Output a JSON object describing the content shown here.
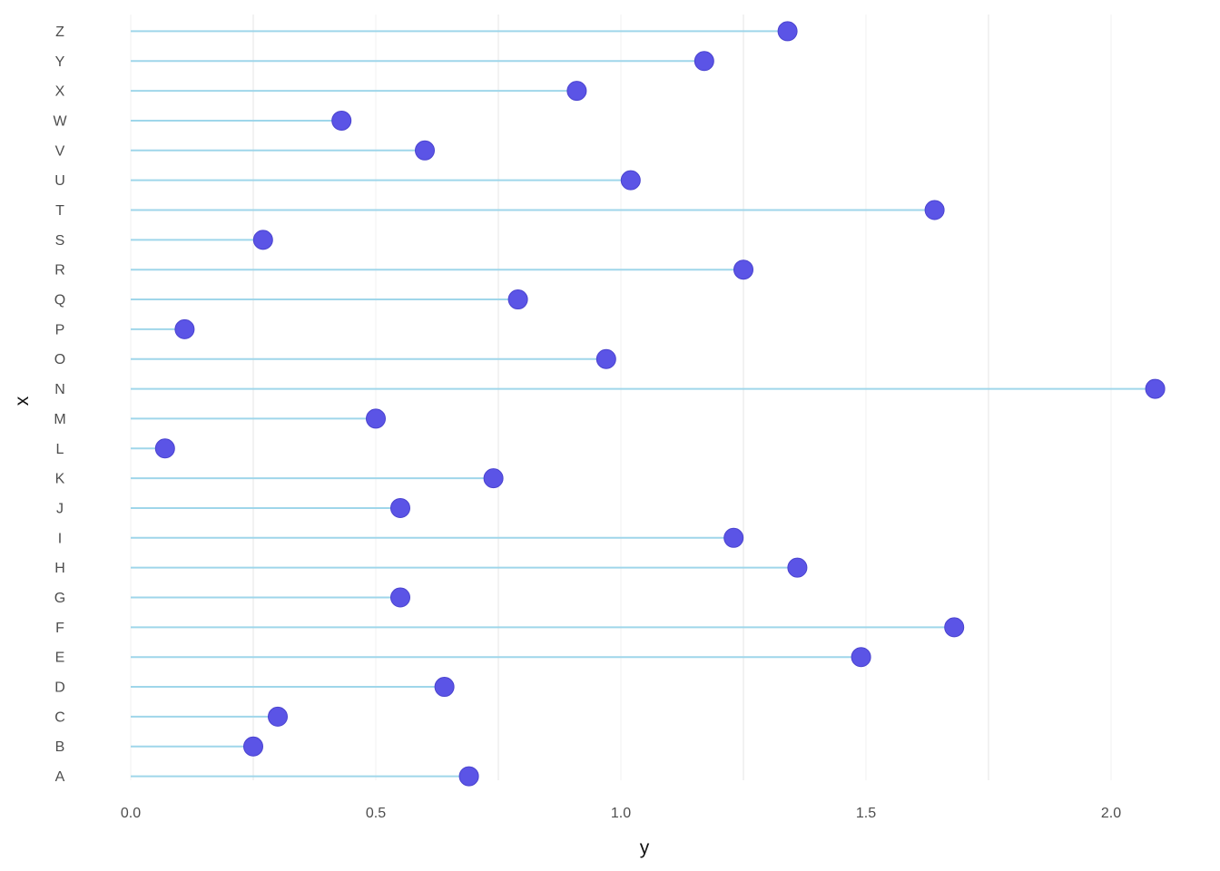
{
  "chart_data": {
    "type": "bar",
    "variant": "lollipop",
    "orientation": "horizontal",
    "title": "",
    "xlabel": "y",
    "ylabel": "x",
    "legend": "none",
    "grid": "vertical gridlines only, minimal theme, white background",
    "xlim": [
      0,
      2.2
    ],
    "x_ticks": [
      0.0,
      0.5,
      1.0,
      1.5,
      2.0
    ],
    "x_tick_labels": [
      "0.0",
      "0.5",
      "1.0",
      "1.5",
      "2.0"
    ],
    "x_minor_gridlines": [
      0.25,
      0.75,
      1.25,
      1.75
    ],
    "categories_top_to_bottom": [
      "Z",
      "Y",
      "X",
      "W",
      "V",
      "U",
      "T",
      "S",
      "R",
      "Q",
      "P",
      "O",
      "N",
      "M",
      "L",
      "K",
      "J",
      "I",
      "H",
      "G",
      "F",
      "E",
      "D",
      "C",
      "B",
      "A"
    ],
    "values": [
      1.34,
      1.17,
      0.91,
      0.43,
      0.6,
      1.02,
      1.64,
      0.27,
      1.25,
      0.79,
      0.11,
      0.97,
      2.09,
      0.5,
      0.07,
      0.74,
      0.55,
      1.23,
      1.36,
      0.55,
      1.68,
      1.49,
      0.64,
      0.3,
      0.25,
      0.69
    ],
    "colors": {
      "stem": "#9fd6ea",
      "dot_fill": "#5b54e6",
      "dot_stroke": "#4a43cf",
      "gridline_major": "#f2f2f2",
      "gridline_minor": "#e5e5e5",
      "tick_text": "#4d4d4d",
      "axis_title_text": "#111111",
      "background": "#ffffff"
    }
  }
}
